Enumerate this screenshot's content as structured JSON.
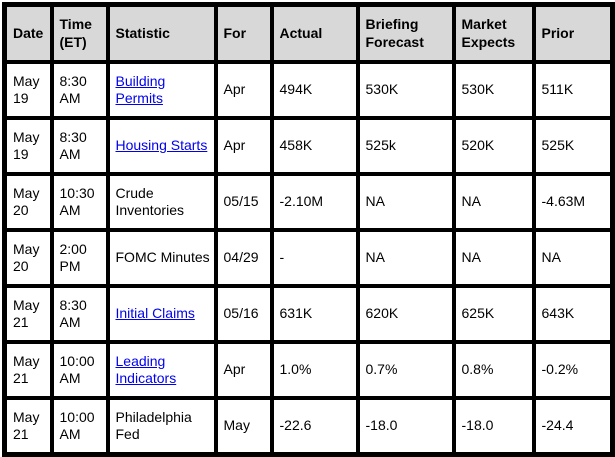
{
  "table": {
    "headers": [
      "Date",
      "Time (ET)",
      "Statistic",
      "For",
      "Actual",
      "Briefing Forecast",
      "Market Expects",
      "Prior"
    ],
    "rows": [
      {
        "date": "May 19",
        "time": "8:30 AM",
        "statistic": "Building Permits",
        "statistic_is_link": true,
        "for": "Apr",
        "actual": "494K",
        "briefing_forecast": "530K",
        "market_expects": "530K",
        "prior": "511K"
      },
      {
        "date": "May 19",
        "time": "8:30 AM",
        "statistic": "Housing Starts",
        "statistic_is_link": true,
        "for": "Apr",
        "actual": "458K",
        "briefing_forecast": "525k",
        "market_expects": "520K",
        "prior": "525K"
      },
      {
        "date": "May 20",
        "time": "10:30 AM",
        "statistic": "Crude Inventories",
        "statistic_is_link": false,
        "for": "05/15",
        "actual": "-2.10M",
        "briefing_forecast": "NA",
        "market_expects": "NA",
        "prior": "-4.63M"
      },
      {
        "date": "May 20",
        "time": "2:00 PM",
        "statistic": "FOMC Minutes",
        "statistic_is_link": false,
        "for": "04/29",
        "actual": "-",
        "briefing_forecast": "NA",
        "market_expects": "NA",
        "prior": "NA"
      },
      {
        "date": "May 21",
        "time": "8:30 AM",
        "statistic": "Initial Claims",
        "statistic_is_link": true,
        "for": "05/16",
        "actual": "631K",
        "briefing_forecast": "620K",
        "market_expects": "625K",
        "prior": "643K"
      },
      {
        "date": "May 21",
        "time": "10:00 AM",
        "statistic": "Leading Indicators",
        "statistic_is_link": true,
        "for": "Apr",
        "actual": "1.0%",
        "briefing_forecast": "0.7%",
        "market_expects": "0.8%",
        "prior": "-0.2%"
      },
      {
        "date": "May 21",
        "time": "10:00 AM",
        "statistic": "Philadelphia Fed",
        "statistic_is_link": false,
        "for": "May",
        "actual": "-22.6",
        "briefing_forecast": "-18.0",
        "market_expects": "-18.0",
        "prior": "-24.4"
      }
    ]
  },
  "colors": {
    "header_bg": "#d8d8d8",
    "row_bg": "#ffffff",
    "border": "#000000",
    "text": "#000000",
    "link": "#0000ee"
  }
}
